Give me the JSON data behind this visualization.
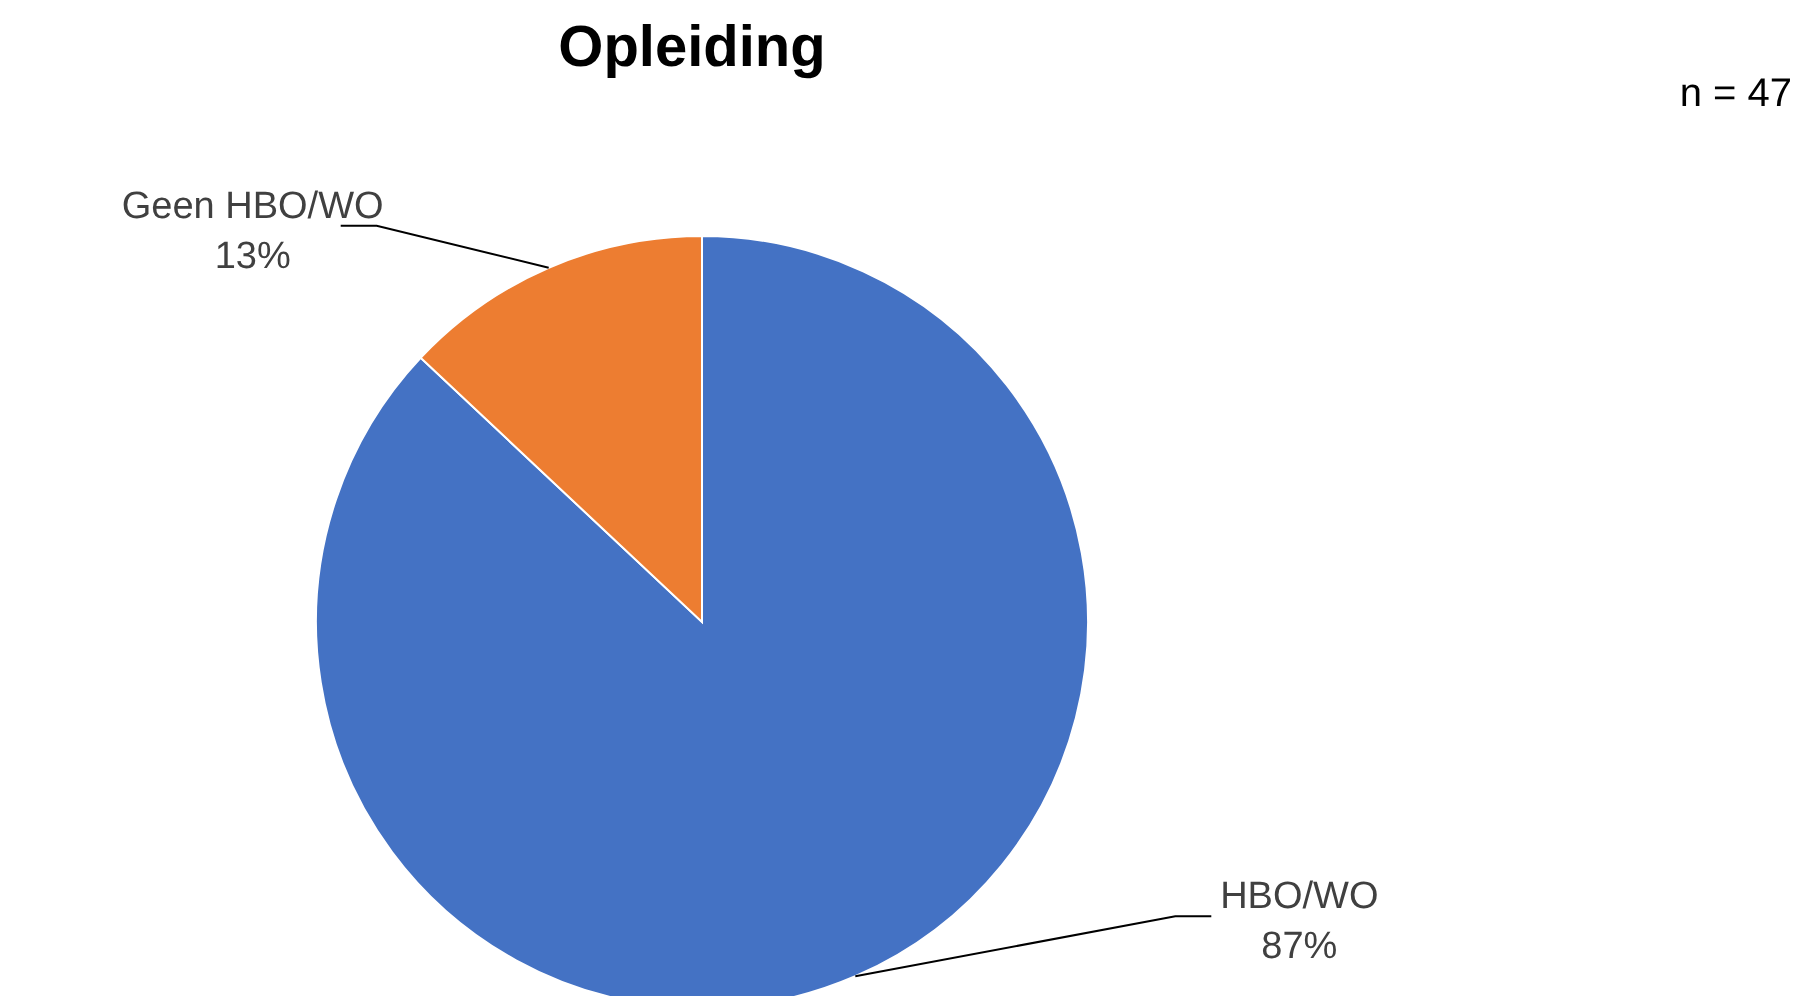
{
  "chart_data": {
    "type": "pie",
    "title": "Opleiding",
    "categories": [
      "HBO/WO",
      "Geen HBO/WO"
    ],
    "values": [
      87,
      13
    ],
    "colors": [
      "#4472c4",
      "#ed7d31"
    ],
    "annotations": [
      "n = 47"
    ],
    "value_labels": [
      "87%",
      "13%"
    ]
  }
}
